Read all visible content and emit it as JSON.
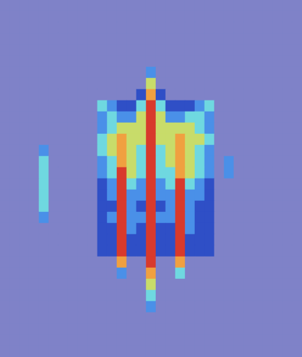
{
  "chart_data": {
    "type": "heatmap",
    "tick_labels": false,
    "color_range": [
      0,
      6
    ],
    "cells": [
      [
        0,
        0,
        0,
        0,
        0,
        0,
        0,
        0,
        0,
        0,
        0,
        0,
        0,
        0,
        0,
        0,
        0,
        0,
        0,
        0,
        0,
        0,
        0,
        0,
        0,
        0,
        0,
        0,
        0,
        0,
        0
      ],
      [
        0,
        0,
        0,
        0,
        0,
        0,
        0,
        0,
        0,
        0,
        0,
        0,
        0,
        0,
        0,
        0,
        0,
        0,
        0,
        0,
        0,
        0,
        0,
        0,
        0,
        0,
        0,
        0,
        0,
        0,
        0
      ],
      [
        0,
        0,
        0,
        0,
        0,
        0,
        0,
        0,
        0,
        0,
        0,
        0,
        0,
        0,
        0,
        0,
        0,
        0,
        0,
        0,
        0,
        0,
        0,
        0,
        0,
        0,
        0,
        0,
        0,
        0,
        0
      ],
      [
        0,
        0,
        0,
        0,
        0,
        0,
        0,
        0,
        0,
        0,
        0,
        0,
        0,
        0,
        0,
        0,
        0,
        0,
        0,
        0,
        0,
        0,
        0,
        0,
        0,
        0,
        0,
        0,
        0,
        0,
        0
      ],
      [
        0,
        0,
        0,
        0,
        0,
        0,
        0,
        0,
        0,
        0,
        0,
        0,
        0,
        0,
        0,
        0,
        0,
        0,
        0,
        0,
        0,
        0,
        0,
        0,
        0,
        0,
        0,
        0,
        0,
        0,
        0
      ],
      [
        0,
        0,
        0,
        0,
        0,
        0,
        0,
        0,
        0,
        0,
        0,
        0,
        0,
        0,
        0,
        0,
        0,
        0,
        0,
        0,
        0,
        0,
        0,
        0,
        0,
        0,
        0,
        0,
        0,
        0,
        0
      ],
      [
        0,
        0,
        0,
        0,
        0,
        0,
        0,
        0,
        0,
        0,
        0,
        0,
        0,
        0,
        0,
        2,
        0,
        0,
        0,
        0,
        0,
        0,
        0,
        0,
        0,
        0,
        0,
        0,
        0,
        0,
        0
      ],
      [
        0,
        0,
        0,
        0,
        0,
        0,
        0,
        0,
        0,
        0,
        0,
        0,
        0,
        0,
        0,
        4,
        0,
        0,
        0,
        0,
        0,
        0,
        0,
        0,
        0,
        0,
        0,
        0,
        0,
        0,
        0
      ],
      [
        0,
        0,
        0,
        0,
        0,
        0,
        0,
        0,
        0,
        0,
        0,
        0,
        0,
        0,
        1,
        5,
        1,
        0,
        0,
        0,
        0,
        0,
        0,
        0,
        0,
        0,
        0,
        0,
        0,
        0,
        0
      ],
      [
        0,
        0,
        0,
        0,
        0,
        0,
        0,
        0,
        0,
        0,
        3,
        2,
        1,
        1,
        3,
        6,
        3,
        1,
        1,
        1,
        2,
        3,
        0,
        0,
        0,
        0,
        0,
        0,
        0,
        0,
        0
      ],
      [
        0,
        0,
        0,
        0,
        0,
        0,
        0,
        0,
        0,
        0,
        2,
        3,
        2,
        2,
        4,
        6,
        4,
        2,
        2,
        3,
        3,
        2,
        0,
        0,
        0,
        0,
        0,
        0,
        0,
        0,
        0
      ],
      [
        0,
        0,
        0,
        0,
        0,
        0,
        0,
        0,
        0,
        0,
        2,
        3,
        4,
        4,
        4,
        6,
        4,
        4,
        4,
        4,
        3,
        2,
        0,
        0,
        0,
        0,
        0,
        0,
        0,
        0,
        0
      ],
      [
        0,
        0,
        0,
        0,
        0,
        0,
        0,
        0,
        0,
        0,
        3,
        4,
        5,
        4,
        4,
        6,
        4,
        4,
        5,
        4,
        4,
        3,
        0,
        0,
        0,
        0,
        0,
        0,
        0,
        0,
        0
      ],
      [
        0,
        0,
        0,
        0,
        2,
        0,
        0,
        0,
        0,
        0,
        3,
        4,
        5,
        4,
        3,
        6,
        3,
        4,
        5,
        4,
        3,
        2,
        0,
        0,
        0,
        0,
        0,
        0,
        0,
        0,
        0
      ],
      [
        0,
        0,
        0,
        0,
        3,
        0,
        0,
        0,
        0,
        0,
        2,
        3,
        5,
        4,
        3,
        6,
        3,
        4,
        5,
        4,
        3,
        2,
        0,
        2,
        0,
        0,
        0,
        0,
        0,
        0,
        0
      ],
      [
        0,
        0,
        0,
        0,
        3,
        0,
        0,
        0,
        0,
        0,
        2,
        3,
        6,
        4,
        3,
        6,
        3,
        3,
        5,
        4,
        3,
        2,
        0,
        2,
        0,
        0,
        0,
        0,
        0,
        0,
        0
      ],
      [
        0,
        0,
        0,
        0,
        3,
        0,
        0,
        0,
        0,
        0,
        1,
        2,
        6,
        3,
        2,
        6,
        2,
        3,
        6,
        3,
        2,
        1,
        0,
        0,
        0,
        0,
        0,
        0,
        0,
        0,
        0
      ],
      [
        0,
        0,
        0,
        0,
        3,
        0,
        0,
        0,
        0,
        0,
        1,
        2,
        6,
        2,
        2,
        6,
        2,
        2,
        6,
        2,
        2,
        1,
        0,
        0,
        0,
        0,
        0,
        0,
        0,
        0,
        0
      ],
      [
        0,
        0,
        0,
        0,
        3,
        0,
        0,
        0,
        0,
        0,
        1,
        1,
        6,
        2,
        1,
        6,
        1,
        2,
        6,
        2,
        1,
        1,
        0,
        0,
        0,
        0,
        0,
        0,
        0,
        0,
        0
      ],
      [
        0,
        0,
        0,
        0,
        2,
        0,
        0,
        0,
        0,
        0,
        1,
        2,
        6,
        2,
        2,
        6,
        2,
        2,
        6,
        2,
        1,
        1,
        0,
        0,
        0,
        0,
        0,
        0,
        0,
        0,
        0
      ],
      [
        0,
        0,
        0,
        0,
        0,
        0,
        0,
        0,
        0,
        0,
        1,
        1,
        6,
        2,
        1,
        6,
        1,
        1,
        6,
        2,
        1,
        1,
        0,
        0,
        0,
        0,
        0,
        0,
        0,
        0,
        0
      ],
      [
        0,
        0,
        0,
        0,
        0,
        0,
        0,
        0,
        0,
        0,
        1,
        1,
        6,
        1,
        1,
        6,
        1,
        1,
        6,
        1,
        1,
        1,
        0,
        0,
        0,
        0,
        0,
        0,
        0,
        0,
        0
      ],
      [
        0,
        0,
        0,
        0,
        0,
        0,
        0,
        0,
        0,
        0,
        1,
        1,
        6,
        1,
        1,
        6,
        1,
        1,
        6,
        1,
        1,
        1,
        0,
        0,
        0,
        0,
        0,
        0,
        0,
        0,
        0
      ],
      [
        0,
        0,
        0,
        0,
        0,
        0,
        0,
        0,
        0,
        0,
        0,
        0,
        5,
        0,
        0,
        6,
        0,
        0,
        5,
        0,
        0,
        0,
        0,
        0,
        0,
        0,
        0,
        0,
        0,
        0,
        0
      ],
      [
        0,
        0,
        0,
        0,
        0,
        0,
        0,
        0,
        0,
        0,
        0,
        0,
        2,
        0,
        0,
        5,
        0,
        0,
        3,
        0,
        0,
        0,
        0,
        0,
        0,
        0,
        0,
        0,
        0,
        0,
        0
      ],
      [
        0,
        0,
        0,
        0,
        0,
        0,
        0,
        0,
        0,
        0,
        0,
        0,
        0,
        0,
        0,
        4,
        0,
        0,
        0,
        0,
        0,
        0,
        0,
        0,
        0,
        0,
        0,
        0,
        0,
        0,
        0
      ],
      [
        0,
        0,
        0,
        0,
        0,
        0,
        0,
        0,
        0,
        0,
        0,
        0,
        0,
        0,
        0,
        3,
        0,
        0,
        0,
        0,
        0,
        0,
        0,
        0,
        0,
        0,
        0,
        0,
        0,
        0,
        0
      ],
      [
        0,
        0,
        0,
        0,
        0,
        0,
        0,
        0,
        0,
        0,
        0,
        0,
        0,
        0,
        0,
        2,
        0,
        0,
        0,
        0,
        0,
        0,
        0,
        0,
        0,
        0,
        0,
        0,
        0,
        0,
        0
      ],
      [
        0,
        0,
        0,
        0,
        0,
        0,
        0,
        0,
        0,
        0,
        0,
        0,
        0,
        0,
        0,
        0,
        0,
        0,
        0,
        0,
        0,
        0,
        0,
        0,
        0,
        0,
        0,
        0,
        0,
        0,
        0
      ],
      [
        0,
        0,
        0,
        0,
        0,
        0,
        0,
        0,
        0,
        0,
        0,
        0,
        0,
        0,
        0,
        0,
        0,
        0,
        0,
        0,
        0,
        0,
        0,
        0,
        0,
        0,
        0,
        0,
        0,
        0,
        0
      ],
      [
        0,
        0,
        0,
        0,
        0,
        0,
        0,
        0,
        0,
        0,
        0,
        0,
        0,
        0,
        0,
        0,
        0,
        0,
        0,
        0,
        0,
        0,
        0,
        0,
        0,
        0,
        0,
        0,
        0,
        0,
        0
      ],
      [
        0,
        0,
        0,
        0,
        0,
        0,
        0,
        0,
        0,
        0,
        0,
        0,
        0,
        0,
        0,
        0,
        0,
        0,
        0,
        0,
        0,
        0,
        0,
        0,
        0,
        0,
        0,
        0,
        0,
        0,
        0
      ]
    ]
  }
}
